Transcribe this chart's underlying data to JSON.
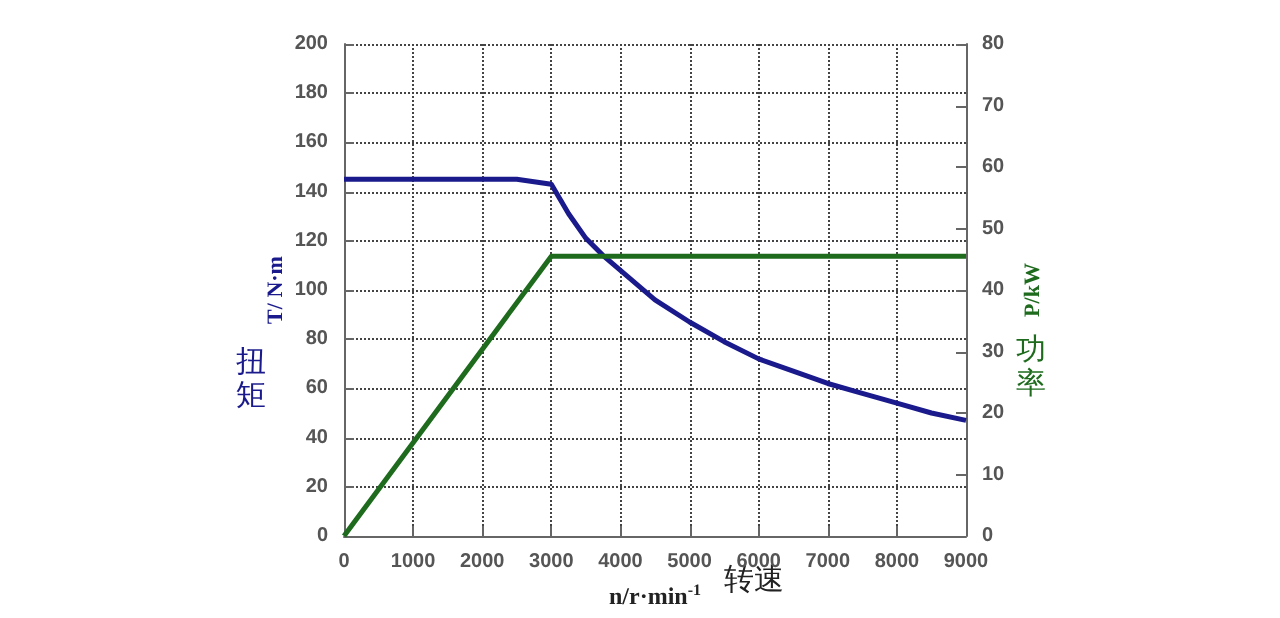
{
  "chart_data": {
    "type": "line",
    "xlabel": "n/r·min$^{-1}$",
    "ylabel": "T/ N·m",
    "y2label": "P/kW",
    "annotations": [
      "扭矩",
      "功率",
      "转速"
    ],
    "xlim": [
      0,
      9000
    ],
    "xticks": [
      0,
      1000,
      2000,
      3000,
      4000,
      5000,
      6000,
      7000,
      8000,
      9000
    ],
    "ylim": [
      0,
      200
    ],
    "yticks": [
      0,
      20,
      40,
      60,
      80,
      100,
      120,
      140,
      160,
      180,
      200
    ],
    "y2lim": [
      0,
      80
    ],
    "y2ticks": [
      0,
      10,
      20,
      30,
      40,
      50,
      60,
      70,
      80
    ],
    "grid": true,
    "line_style": "solid",
    "marker": "none",
    "series": [
      {
        "color": "#1a1a8c",
        "x": [
          0,
          2500,
          3000,
          3250,
          3500,
          3750,
          4000,
          4500,
          5000,
          5500,
          6000,
          6500,
          7000,
          7500,
          8000,
          8500,
          9000
        ],
        "values": [
          145,
          145,
          143,
          131,
          121,
          114,
          108,
          96,
          87,
          79,
          72,
          67,
          62,
          58,
          54,
          50,
          47
        ]
      },
      {
        "color": "#1e6b1e",
        "axis": "y2",
        "x": [
          0,
          3000,
          9000
        ],
        "values": [
          0,
          45.5,
          45.5
        ]
      }
    ]
  }
}
